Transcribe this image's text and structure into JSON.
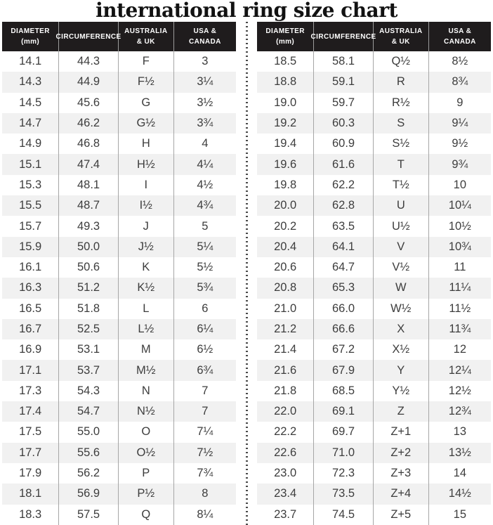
{
  "title": "international ring size chart",
  "colors": {
    "header_bg": "#1f1c1d",
    "header_text": "#ffffff",
    "row_stripe": "#f1f1f1",
    "body_text": "#3d3d3d",
    "column_separator": "#a6a6a6",
    "divider_dots": "#4b4b4b",
    "title_text": "#121212"
  },
  "chart_data": {
    "type": "table",
    "title": "international ring size chart",
    "columns": [
      {
        "label": "DIAMETER (mm)",
        "lines": [
          "DIAMETER",
          "(mm)"
        ]
      },
      {
        "label": "CIRCUMFERENCE",
        "lines": [
          "CIRCUMFERENCE"
        ]
      },
      {
        "label": "AUSTRALIA & UK",
        "lines": [
          "AUSTRALIA",
          "& UK"
        ]
      },
      {
        "label": "USA & CANADA",
        "lines": [
          "USA &",
          "CANADA"
        ]
      }
    ],
    "tables": [
      {
        "name": "left",
        "rows": [
          [
            "14.1",
            "44.3",
            "F",
            "3"
          ],
          [
            "14.3",
            "44.9",
            "F½",
            "3¼"
          ],
          [
            "14.5",
            "45.6",
            "G",
            "3½"
          ],
          [
            "14.7",
            "46.2",
            "G½",
            "3¾"
          ],
          [
            "14.9",
            "46.8",
            "H",
            "4"
          ],
          [
            "15.1",
            "47.4",
            "H½",
            "4¼"
          ],
          [
            "15.3",
            "48.1",
            "I",
            "4½"
          ],
          [
            "15.5",
            "48.7",
            "I½",
            "4¾"
          ],
          [
            "15.7",
            "49.3",
            "J",
            "5"
          ],
          [
            "15.9",
            "50.0",
            "J½",
            "5¼"
          ],
          [
            "16.1",
            "50.6",
            "K",
            "5½"
          ],
          [
            "16.3",
            "51.2",
            "K½",
            "5¾"
          ],
          [
            "16.5",
            "51.8",
            "L",
            "6"
          ],
          [
            "16.7",
            "52.5",
            "L½",
            "6¼"
          ],
          [
            "16.9",
            "53.1",
            "M",
            "6½"
          ],
          [
            "17.1",
            "53.7",
            "M½",
            "6¾"
          ],
          [
            "17.3",
            "54.3",
            "N",
            "7"
          ],
          [
            "17.4",
            "54.7",
            "N½",
            "7"
          ],
          [
            "17.5",
            "55.0",
            "O",
            "7¼"
          ],
          [
            "17.7",
            "55.6",
            "O½",
            "7½"
          ],
          [
            "17.9",
            "56.2",
            "P",
            "7¾"
          ],
          [
            "18.1",
            "56.9",
            "P½",
            "8"
          ],
          [
            "18.3",
            "57.5",
            "Q",
            "8¼"
          ]
        ]
      },
      {
        "name": "right",
        "rows": [
          [
            "18.5",
            "58.1",
            "Q½",
            "8½"
          ],
          [
            "18.8",
            "59.1",
            "R",
            "8¾"
          ],
          [
            "19.0",
            "59.7",
            "R½",
            "9"
          ],
          [
            "19.2",
            "60.3",
            "S",
            "9¼"
          ],
          [
            "19.4",
            "60.9",
            "S½",
            "9½"
          ],
          [
            "19.6",
            "61.6",
            "T",
            "9¾"
          ],
          [
            "19.8",
            "62.2",
            "T½",
            "10"
          ],
          [
            "20.0",
            "62.8",
            "U",
            "10¼"
          ],
          [
            "20.2",
            "63.5",
            "U½",
            "10½"
          ],
          [
            "20.4",
            "64.1",
            "V",
            "10¾"
          ],
          [
            "20.6",
            "64.7",
            "V½",
            "11"
          ],
          [
            "20.8",
            "65.3",
            "W",
            "11¼"
          ],
          [
            "21.0",
            "66.0",
            "W½",
            "11½"
          ],
          [
            "21.2",
            "66.6",
            "X",
            "11¾"
          ],
          [
            "21.4",
            "67.2",
            "X½",
            "12"
          ],
          [
            "21.6",
            "67.9",
            "Y",
            "12¼"
          ],
          [
            "21.8",
            "68.5",
            "Y½",
            "12½"
          ],
          [
            "22.0",
            "69.1",
            "Z",
            "12¾"
          ],
          [
            "22.2",
            "69.7",
            "Z+1",
            "13"
          ],
          [
            "22.6",
            "71.0",
            "Z+2",
            "13½"
          ],
          [
            "23.0",
            "72.3",
            "Z+3",
            "14"
          ],
          [
            "23.4",
            "73.5",
            "Z+4",
            "14½"
          ],
          [
            "23.7",
            "74.5",
            "Z+5",
            "15"
          ]
        ]
      }
    ]
  }
}
